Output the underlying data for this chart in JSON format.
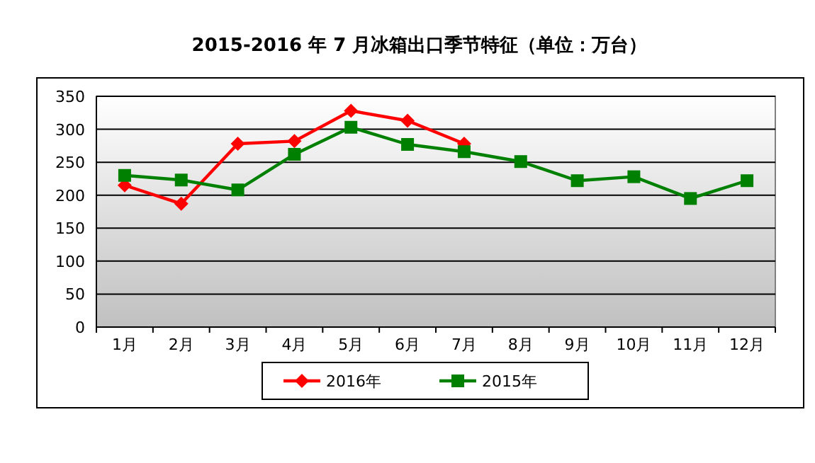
{
  "chart_data": {
    "type": "line",
    "title": "2015-2016 年 7 月冰箱出口季节特征（单位：万台）",
    "categories": [
      "1月",
      "2月",
      "3月",
      "4月",
      "5月",
      "6月",
      "7月",
      "8月",
      "9月",
      "10月",
      "11月",
      "12月"
    ],
    "series": [
      {
        "name": "2016年",
        "color": "#ff0000",
        "marker": "diamond",
        "values": [
          215,
          187,
          278,
          282,
          328,
          313,
          278,
          null,
          null,
          null,
          null,
          null
        ]
      },
      {
        "name": "2015年",
        "color": "#008000",
        "marker": "square",
        "values": [
          230,
          223,
          208,
          262,
          303,
          277,
          266,
          251,
          222,
          228,
          195,
          222
        ]
      }
    ],
    "ylim": [
      0,
      350
    ],
    "yticks": [
      0,
      50,
      100,
      150,
      200,
      250,
      300,
      350
    ],
    "grid": "y",
    "legend": "bottom"
  }
}
